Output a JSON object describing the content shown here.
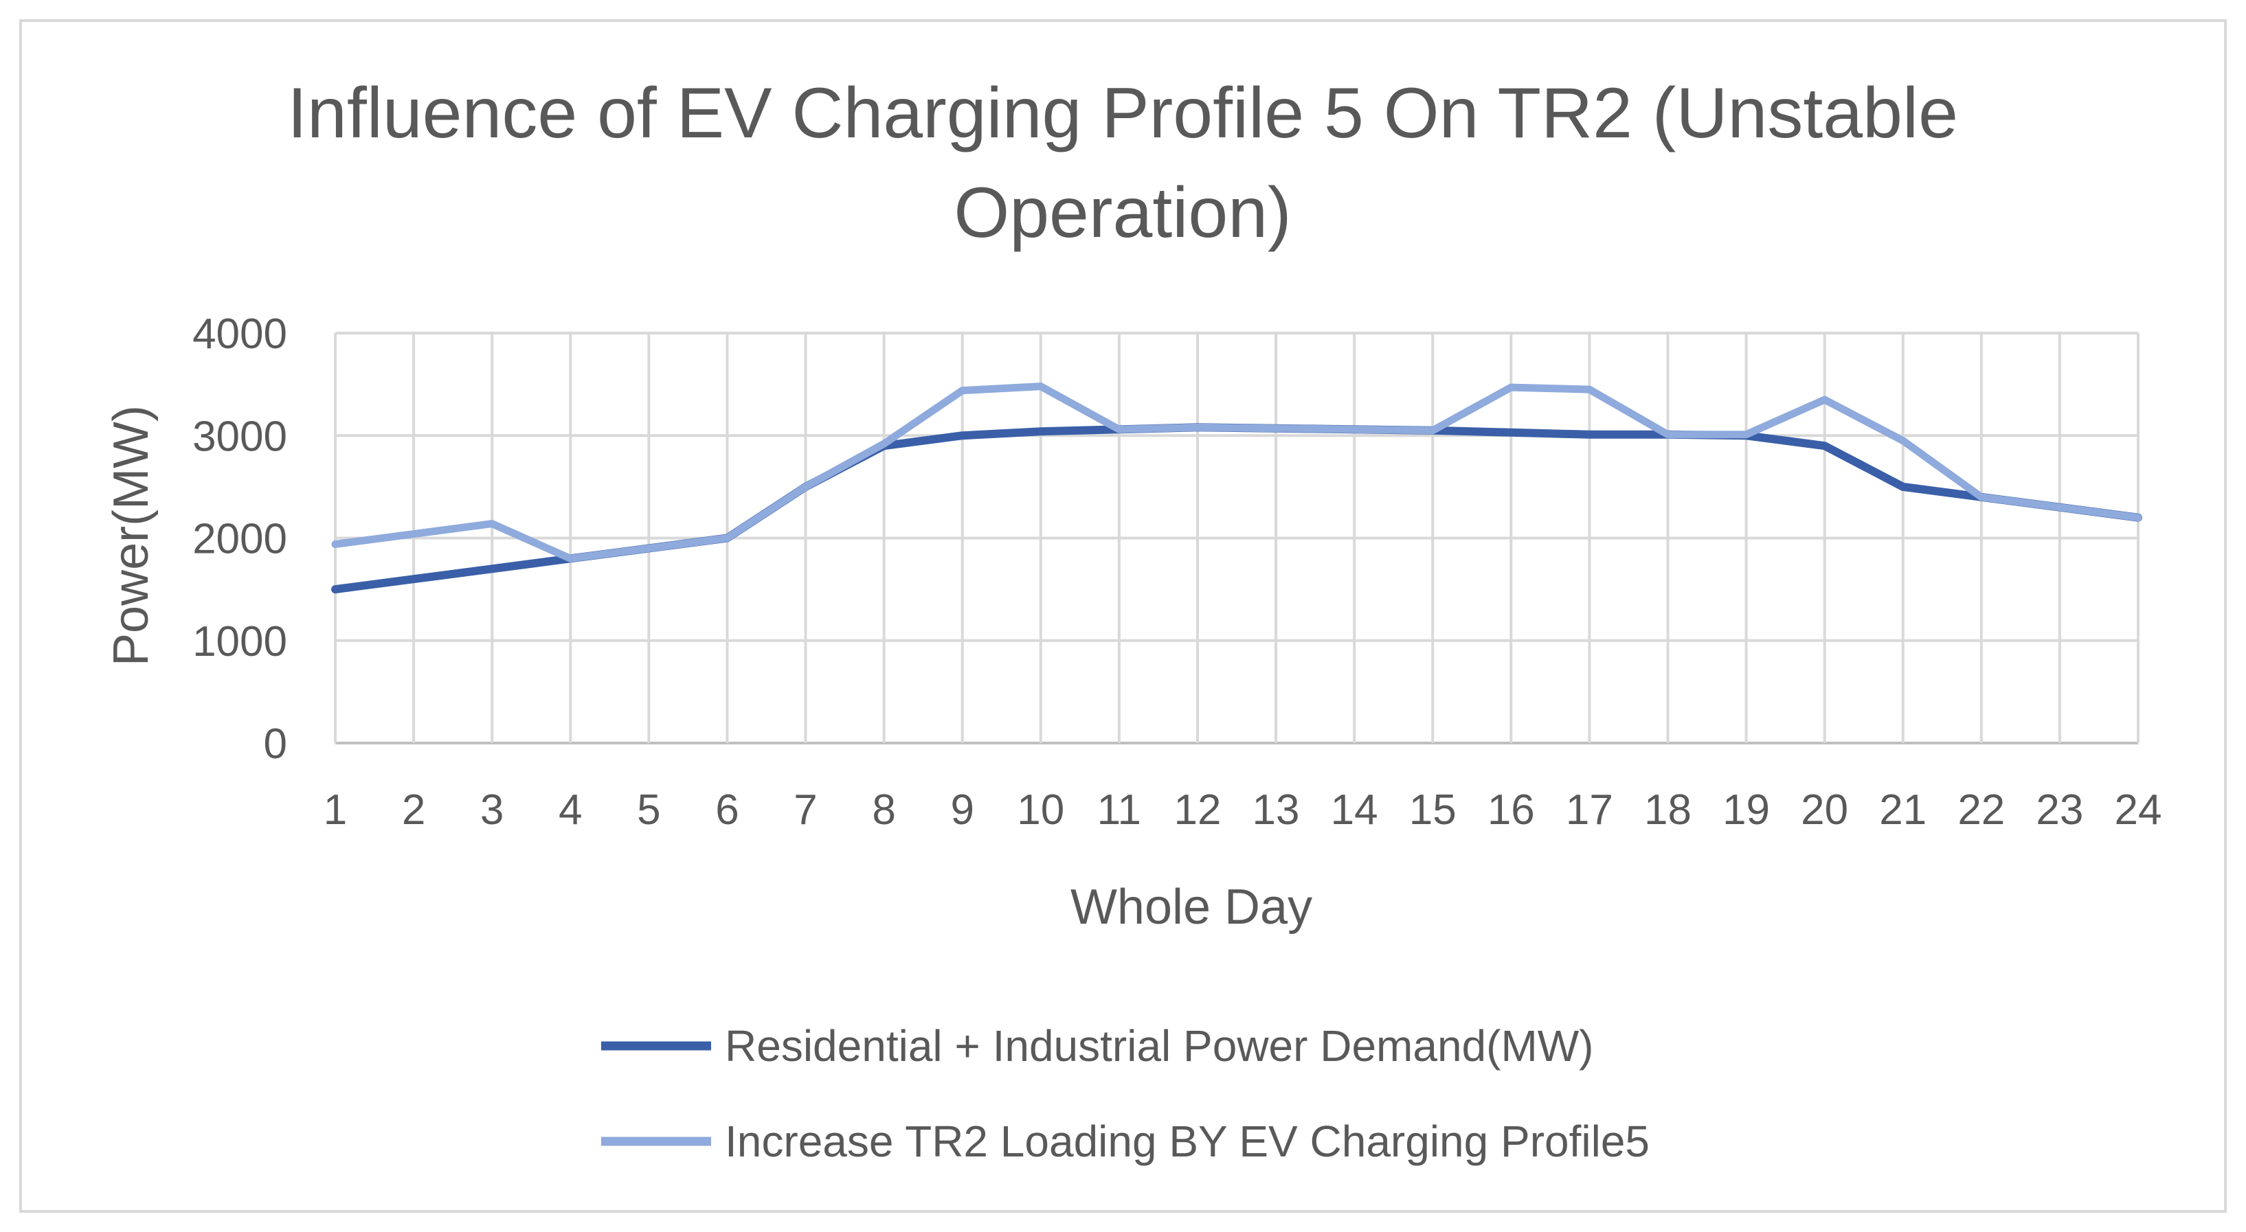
{
  "chart_data": {
    "type": "line",
    "title_lines": [
      "Influence of EV Charging Profile 5 On TR2 (Unstable",
      "Operation)"
    ],
    "xlabel": "Whole Day",
    "ylabel": "Power(MW)",
    "ylim": [
      0,
      4000
    ],
    "yticks": [
      0,
      1000,
      2000,
      3000,
      4000
    ],
    "ytick_labels": [
      "0",
      "1000",
      "2000",
      "3000",
      "4000"
    ],
    "categories": [
      "1",
      "2",
      "3",
      "4",
      "5",
      "6",
      "7",
      "8",
      "9",
      "10",
      "11",
      "12",
      "13",
      "14",
      "15",
      "16",
      "17",
      "18",
      "19",
      "20",
      "21",
      "22",
      "23",
      "24"
    ],
    "grid": true,
    "legend_position": "bottom",
    "series": [
      {
        "name": "Residential + Industrial Power Demand(MW)",
        "color": "#3a5fa8",
        "values": [
          1500,
          1600,
          1700,
          1800,
          1900,
          2000,
          2500,
          2900,
          3000,
          3040,
          3060,
          3080,
          3070,
          3060,
          3050,
          3030,
          3010,
          3010,
          3000,
          2900,
          2500,
          2400,
          2300,
          2200
        ]
      },
      {
        "name": "Increase TR2 Loading BY EV Charging Profile5",
        "color": "#8faadc",
        "values": [
          1940,
          2040,
          2140,
          1800,
          1900,
          2000,
          2500,
          2920,
          3440,
          3480,
          3060,
          3080,
          3070,
          3060,
          3050,
          3470,
          3450,
          3010,
          3010,
          3350,
          2950,
          2400,
          2300,
          2200
        ]
      }
    ]
  }
}
